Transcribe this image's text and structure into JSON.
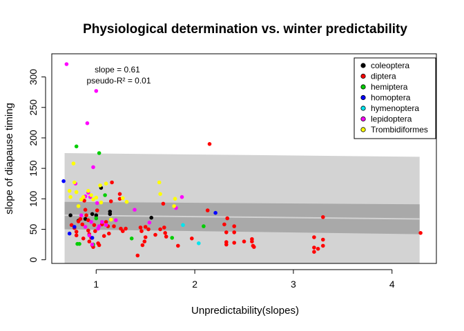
{
  "chart_data": {
    "type": "scatter",
    "title": "Physiological determination vs. winter predictability",
    "xlabel": "Unpredictability(slopes)",
    "ylabel": "slope of diapause timing",
    "xlim": [
      0.55,
      4.45
    ],
    "ylim": [
      -6,
      338
    ],
    "x_ticks": [
      1,
      2,
      3,
      4
    ],
    "y_ticks": [
      0,
      50,
      100,
      150,
      200,
      250,
      300
    ],
    "x_tick_labels": [
      "1",
      "2",
      "3",
      "4"
    ],
    "y_tick_labels": [
      "0",
      "50",
      "100",
      "150",
      "200",
      "250",
      "300"
    ],
    "grid": false,
    "legend_position": "top-right",
    "annotations": {
      "slope": "slope =  0.61",
      "r2": "pseudo-R² =  0.01"
    },
    "bands": {
      "outer": {
        "x": [
          0.68,
          4.28
        ],
        "lower_left": -6,
        "upper_left": 175,
        "lower_right": -6,
        "upper_right": 169,
        "color": "#d3d3d3"
      },
      "inner": {
        "x": [
          0.68,
          4.28
        ],
        "lower_left": 50,
        "upper_left": 95,
        "lower_right": 42,
        "upper_right": 91,
        "color": "#a9a9a9"
      },
      "fit": {
        "x": [
          0.68,
          4.28
        ],
        "y": [
          73,
          67
        ],
        "color": "#d3d3d3"
      }
    },
    "series": [
      {
        "name": "coleoptera",
        "color": "#000000",
        "points": [
          [
            0.74,
            73
          ],
          [
            0.82,
            64
          ],
          [
            0.89,
            67
          ],
          [
            0.96,
            75
          ],
          [
            1.0,
            73
          ],
          [
            1.05,
            118
          ],
          [
            1.14,
            75
          ],
          [
            1.14,
            79
          ],
          [
            1.56,
            69
          ]
        ]
      },
      {
        "name": "diptera",
        "color": "#ff0000",
        "points": [
          [
            0.75,
            57
          ],
          [
            0.78,
            52
          ],
          [
            0.8,
            46
          ],
          [
            0.8,
            40
          ],
          [
            0.82,
            63
          ],
          [
            0.84,
            67
          ],
          [
            0.86,
            58
          ],
          [
            0.87,
            35
          ],
          [
            0.88,
            97
          ],
          [
            0.89,
            82
          ],
          [
            0.9,
            73
          ],
          [
            0.92,
            65
          ],
          [
            0.92,
            48
          ],
          [
            0.93,
            42
          ],
          [
            0.93,
            30
          ],
          [
            0.95,
            36
          ],
          [
            0.96,
            24
          ],
          [
            0.97,
            21
          ],
          [
            0.98,
            57
          ],
          [
            0.99,
            47
          ],
          [
            1.01,
            81
          ],
          [
            1.02,
            27
          ],
          [
            1.03,
            24
          ],
          [
            1.06,
            58
          ],
          [
            1.08,
            39
          ],
          [
            1.1,
            62
          ],
          [
            1.12,
            55
          ],
          [
            1.13,
            43
          ],
          [
            1.15,
            96
          ],
          [
            1.16,
            127
          ],
          [
            1.18,
            55
          ],
          [
            1.24,
            100
          ],
          [
            1.24,
            108
          ],
          [
            1.25,
            51
          ],
          [
            1.27,
            47
          ],
          [
            1.3,
            51
          ],
          [
            1.42,
            7
          ],
          [
            1.45,
            53
          ],
          [
            1.46,
            47
          ],
          [
            1.47,
            24
          ],
          [
            1.49,
            30
          ],
          [
            1.5,
            37
          ],
          [
            1.5,
            54
          ],
          [
            1.53,
            50
          ],
          [
            1.6,
            41
          ],
          [
            1.65,
            50
          ],
          [
            1.68,
            92
          ],
          [
            1.69,
            53
          ],
          [
            1.7,
            44
          ],
          [
            1.71,
            38
          ],
          [
            1.83,
            23
          ],
          [
            1.97,
            35
          ],
          [
            2.13,
            81
          ],
          [
            2.15,
            190
          ],
          [
            2.3,
            58
          ],
          [
            2.32,
            29
          ],
          [
            2.32,
            25
          ],
          [
            2.32,
            45
          ],
          [
            2.33,
            68
          ],
          [
            2.4,
            55
          ],
          [
            2.4,
            45
          ],
          [
            2.4,
            28
          ],
          [
            2.5,
            30
          ],
          [
            2.58,
            34
          ],
          [
            2.58,
            30
          ],
          [
            2.59,
            23
          ],
          [
            2.6,
            21
          ],
          [
            3.21,
            37
          ],
          [
            3.21,
            20
          ],
          [
            3.21,
            13
          ],
          [
            3.25,
            18
          ],
          [
            3.3,
            23
          ],
          [
            3.3,
            33
          ],
          [
            3.3,
            70
          ],
          [
            4.29,
            44
          ]
        ]
      },
      {
        "name": "hemiptera",
        "color": "#00cd00",
        "points": [
          [
            0.8,
            186
          ],
          [
            0.81,
            26
          ],
          [
            0.83,
            26
          ],
          [
            0.97,
            25
          ],
          [
            1.0,
            68
          ],
          [
            1.03,
            175
          ],
          [
            1.09,
            106
          ],
          [
            1.36,
            35
          ],
          [
            1.77,
            36
          ],
          [
            2.09,
            55
          ]
        ]
      },
      {
        "name": "homoptera",
        "color": "#0000ff",
        "points": [
          [
            0.67,
            129
          ],
          [
            0.73,
            43
          ],
          [
            0.78,
            54
          ],
          [
            0.96,
            36
          ],
          [
            2.21,
            77
          ]
        ]
      },
      {
        "name": "hymenoptera",
        "color": "#00e5ee",
        "points": [
          [
            1.88,
            57
          ],
          [
            2.04,
            27
          ]
        ]
      },
      {
        "name": "lepidoptera",
        "color": "#ff00ff",
        "points": [
          [
            0.7,
            321
          ],
          [
            0.79,
            125
          ],
          [
            0.85,
            73
          ],
          [
            0.89,
            54
          ],
          [
            0.89,
            104
          ],
          [
            0.91,
            224
          ],
          [
            0.92,
            110
          ],
          [
            0.93,
            40
          ],
          [
            0.94,
            103
          ],
          [
            0.95,
            62
          ],
          [
            0.96,
            25
          ],
          [
            0.97,
            152
          ],
          [
            1.0,
            277
          ],
          [
            1.01,
            93
          ],
          [
            1.02,
            51
          ],
          [
            1.03,
            55
          ],
          [
            1.06,
            62
          ],
          [
            1.1,
            57
          ],
          [
            1.2,
            65
          ],
          [
            1.39,
            82
          ],
          [
            1.54,
            61
          ],
          [
            1.81,
            85
          ],
          [
            1.87,
            103
          ]
        ]
      },
      {
        "name": "Trombidiformes",
        "color": "#ffff00",
        "points": [
          [
            0.73,
            113
          ],
          [
            0.74,
            103
          ],
          [
            0.77,
            158
          ],
          [
            0.78,
            127
          ],
          [
            0.8,
            111
          ],
          [
            0.82,
            88
          ],
          [
            0.85,
            99
          ],
          [
            0.87,
            103
          ],
          [
            0.92,
            113
          ],
          [
            0.95,
            106
          ],
          [
            0.97,
            99
          ],
          [
            1.0,
            102
          ],
          [
            1.04,
            122
          ],
          [
            1.05,
            94
          ],
          [
            1.1,
            125
          ],
          [
            1.15,
            66
          ],
          [
            1.27,
            101
          ],
          [
            1.31,
            95
          ],
          [
            1.64,
            127
          ],
          [
            1.65,
            108
          ],
          [
            1.79,
            88
          ],
          [
            1.8,
            100
          ]
        ]
      }
    ]
  }
}
